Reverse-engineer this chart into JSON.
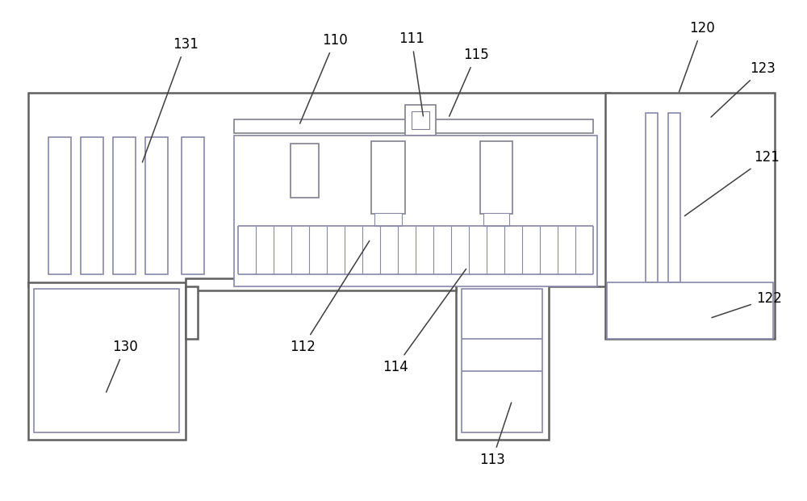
{
  "lc_dark": "#606060",
  "lc_mid": "#808090",
  "lc_green": "#6a9a6a",
  "lc_purple": "#8888aa",
  "bg": "white",
  "lw_outer": 1.8,
  "lw_inner": 1.2,
  "lw_thin": 0.8,
  "fig_w": 10.0,
  "fig_h": 6.21
}
